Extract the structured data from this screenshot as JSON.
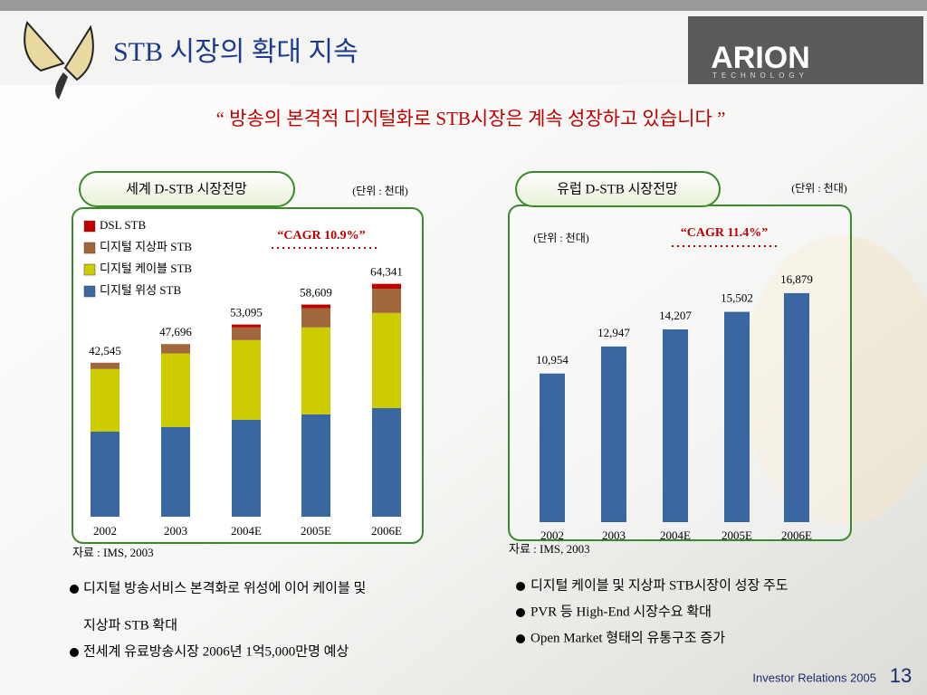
{
  "title": "STB 시장의 확대 지속",
  "subtitle": "“ 방송의 본격적 디지털화로 STB시장은 계속 성장하고 있습니다 ”",
  "logo": {
    "name": "ARION",
    "tagline": "TECHNOLOGY"
  },
  "chart_data": [
    {
      "type": "bar",
      "stacked": true,
      "title": "세계 D-STB 시장전망",
      "unit": "(단위 : 천대)",
      "annotation": "“CAGR  10.9%”",
      "source": "자료 : IMS, 2003",
      "categories": [
        "2002",
        "2003",
        "2004E",
        "2005E",
        "2006E"
      ],
      "series": [
        {
          "name": "DSL STB",
          "color": "#c00000",
          "values": [
            0,
            0,
            795,
            1009,
            1341
          ]
        },
        {
          "name": "디지털 지상파 STB",
          "color": "#a0683a",
          "values": [
            1745,
            2596,
            3500,
            5300,
            6700
          ]
        },
        {
          "name": "디지털 케이블 STB",
          "color": "#cccc00",
          "values": [
            17300,
            20300,
            22000,
            24000,
            26300
          ]
        },
        {
          "name": "디지털 위성 STB",
          "color": "#3a67a0",
          "values": [
            23500,
            24800,
            26800,
            28300,
            30000
          ]
        }
      ],
      "totals": [
        42545,
        47696,
        53095,
        58609,
        64341
      ],
      "total_labels": [
        "42,545",
        "47,696",
        "53,095",
        "58,609",
        "64,341"
      ]
    },
    {
      "type": "bar",
      "title": "유럽 D-STB 시장전망",
      "unit": "(단위 : 천대)",
      "unit_inner": "(단위 : 천대)",
      "annotation": "“CAGR  11.4%”",
      "source": "자료 : IMS, 2003",
      "categories": [
        "2002",
        "2003",
        "2004E",
        "2005E",
        "2006E"
      ],
      "color": "#3a67a0",
      "values": [
        10954,
        12947,
        14207,
        15502,
        16879
      ],
      "value_labels": [
        "10,954",
        "12,947",
        "14,207",
        "15,502",
        "16,879"
      ]
    }
  ],
  "bullets_left": [
    "디지털 방송서비스 본격화로 위성에 이어 케이블 및",
    "지상파 STB 확대",
    "전세계 유료방송시장 2006년 1억5,000만명 예상"
  ],
  "bullets_right": [
    "디지털 케이블 및 지상파 STB시장이 성장 주도",
    "PVR 등 High-End 시장수요 확대",
    "Open Market 형태의 유통구조 증가"
  ],
  "footer": "Investor Relations 2005",
  "page": "13"
}
